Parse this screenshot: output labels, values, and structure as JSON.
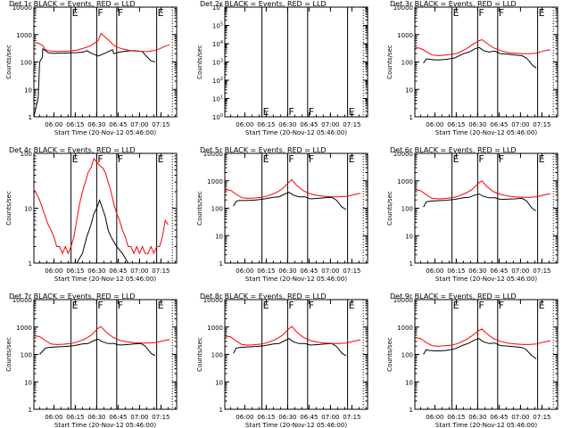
{
  "figure": {
    "ylabel": "Counts/sec",
    "xlabel": "Start Time (20-Nov-12 05:46:00)",
    "title_suffix": " BLACK = Events, RED = LLD",
    "xticks": [
      "06:00",
      "06:15",
      "06:30",
      "06:45",
      "07:00",
      "07:15"
    ],
    "colors": {
      "events": "#000000",
      "lld": "#ff0000"
    }
  },
  "chart_data": [
    {
      "type": "line",
      "det": "Det 1r",
      "yscale": "log",
      "ylim": [
        1,
        10000
      ],
      "yticks": [
        "1",
        "10",
        "100",
        "1000",
        "10000"
      ],
      "xlim": [
        "05:46",
        "07:26"
      ],
      "flags": [
        "E",
        "F",
        "F",
        "E"
      ],
      "series": [
        {
          "name": "BLACK = Events",
          "x": [
            0,
            3,
            4,
            6,
            6.2,
            8,
            10,
            12,
            14,
            17,
            20,
            25,
            30,
            35,
            37,
            40,
            45,
            50,
            55,
            56,
            60,
            65,
            70,
            76,
            78,
            80,
            82,
            85
          ],
          "y": [
            0,
            5,
            100,
            150,
            300,
            260,
            220,
            210,
            205,
            210,
            210,
            215,
            220,
            230,
            260,
            210,
            165,
            210,
            280,
            200,
            230,
            250,
            260,
            240,
            180,
            140,
            110,
            100
          ]
        },
        {
          "name": "RED = LLD",
          "x": [
            0,
            3,
            6,
            8,
            10,
            12,
            14,
            17,
            20,
            25,
            30,
            35,
            38,
            40,
            45,
            47,
            52,
            55,
            58,
            62,
            66,
            70,
            76,
            80,
            84,
            88,
            92,
            95
          ],
          "y": [
            500,
            490,
            400,
            280,
            260,
            250,
            245,
            240,
            245,
            250,
            270,
            320,
            360,
            400,
            600,
            1100,
            650,
            450,
            350,
            300,
            270,
            250,
            240,
            240,
            260,
            300,
            380,
            420
          ]
        }
      ]
    },
    {
      "type": "line",
      "det": "Det 2r",
      "yscale": "log",
      "ylim": [
        1,
        1000000
      ],
      "yticks": [
        "10^0",
        "10^1",
        "10^2",
        "10^3",
        "10^4",
        "10^5",
        "10^6"
      ],
      "xlim": [
        "05:46",
        "07:26"
      ],
      "flags": [
        "E",
        "F",
        "F",
        "E"
      ],
      "series": []
    },
    {
      "type": "line",
      "det": "Det 3r",
      "yscale": "log",
      "ylim": [
        1,
        10000
      ],
      "yticks": [
        "1",
        "10",
        "100",
        "1000",
        "10000"
      ],
      "xlim": [
        "05:46",
        "07:26"
      ],
      "flags": [
        "E",
        "F",
        "F",
        "E"
      ],
      "series": [
        {
          "name": "BLACK = Events",
          "x": [
            6,
            8,
            10,
            14,
            18,
            22,
            28,
            34,
            38,
            42,
            45,
            48,
            52,
            56,
            60,
            66,
            70,
            75,
            78,
            80,
            82,
            85
          ],
          "y": [
            90,
            130,
            125,
            120,
            120,
            125,
            140,
            200,
            230,
            300,
            340,
            260,
            230,
            250,
            200,
            190,
            180,
            170,
            140,
            110,
            80,
            60
          ]
        },
        {
          "name": "RED = LLD",
          "x": [
            0,
            4,
            8,
            12,
            16,
            20,
            26,
            30,
            36,
            40,
            45,
            47,
            50,
            55,
            60,
            65,
            70,
            76,
            80,
            85,
            90,
            95
          ],
          "y": [
            350,
            310,
            240,
            180,
            170,
            175,
            190,
            210,
            300,
            420,
            600,
            650,
            500,
            330,
            260,
            220,
            210,
            200,
            200,
            210,
            250,
            280
          ]
        }
      ]
    },
    {
      "type": "line",
      "det": "Det 4r",
      "yscale": "log",
      "ylim": [
        1,
        100
      ],
      "yticks": [
        "1",
        "10",
        "100"
      ],
      "xlim": [
        "05:46",
        "07:26"
      ],
      "flags": [
        "E",
        "F",
        "F",
        "E"
      ],
      "series": [
        {
          "name": "BLACK = Events",
          "x": [
            14,
            24,
            30,
            34,
            37,
            40,
            42,
            44,
            46,
            48,
            50,
            52,
            54,
            58,
            62,
            66,
            72
          ],
          "y": [
            1,
            1,
            1,
            1.5,
            3,
            5,
            8,
            10,
            14,
            10,
            7,
            4,
            3,
            2,
            1.5,
            1,
            1
          ]
        },
        {
          "name": "RED = LLD",
          "x": [
            0,
            2,
            4,
            6,
            8,
            10,
            12,
            14,
            16,
            18,
            20,
            22,
            24,
            26,
            28,
            30,
            32,
            34,
            36,
            38,
            40,
            42,
            44,
            46,
            48,
            50,
            52,
            54,
            56,
            58,
            60,
            62,
            64,
            66,
            68,
            70,
            72,
            74,
            76,
            78,
            80,
            82,
            84,
            86,
            88,
            90,
            92,
            94
          ],
          "y": [
            22,
            18,
            14,
            10,
            7,
            5,
            4,
            3,
            2,
            2,
            1.5,
            2,
            1.5,
            2,
            3,
            6,
            12,
            20,
            30,
            45,
            55,
            80,
            70,
            60,
            55,
            45,
            30,
            20,
            12,
            8,
            6,
            4,
            3,
            2,
            2,
            1.5,
            2,
            1.5,
            2,
            1.5,
            1.5,
            2,
            1.5,
            2,
            2,
            3,
            6,
            5
          ]
        }
      ]
    },
    {
      "type": "line",
      "det": "Det 5r",
      "yscale": "log",
      "ylim": [
        1,
        10000
      ],
      "yticks": [
        "1",
        "10",
        "100",
        "1000",
        "10000"
      ],
      "xlim": [
        "05:46",
        "07:26"
      ],
      "flags": [
        "E",
        "F",
        "F",
        "E"
      ],
      "series": [
        {
          "name": "BLACK = Events",
          "x": [
            6,
            8,
            10,
            14,
            18,
            22,
            28,
            34,
            38,
            42,
            45,
            48,
            52,
            56,
            60,
            66,
            70,
            75,
            78,
            80,
            82,
            85
          ],
          "y": [
            120,
            180,
            190,
            190,
            195,
            200,
            220,
            250,
            260,
            330,
            380,
            300,
            260,
            260,
            220,
            230,
            240,
            250,
            200,
            150,
            110,
            90
          ]
        },
        {
          "name": "RED = LLD",
          "x": [
            0,
            4,
            8,
            12,
            16,
            20,
            26,
            30,
            36,
            40,
            45,
            47,
            50,
            55,
            60,
            65,
            70,
            76,
            80,
            85,
            90,
            95
          ],
          "y": [
            480,
            450,
            320,
            240,
            230,
            235,
            250,
            280,
            370,
            500,
            900,
            1100,
            700,
            430,
            330,
            290,
            270,
            260,
            260,
            270,
            310,
            350
          ]
        }
      ]
    },
    {
      "type": "line",
      "det": "Det 6r",
      "yscale": "log",
      "ylim": [
        1,
        10000
      ],
      "yticks": [
        "1",
        "10",
        "100",
        "1000",
        "10000"
      ],
      "xlim": [
        "05:46",
        "07:26"
      ],
      "flags": [
        "E",
        "F",
        "F",
        "E"
      ],
      "series": [
        {
          "name": "BLACK = Events",
          "x": [
            6,
            8,
            10,
            14,
            18,
            22,
            28,
            34,
            38,
            42,
            45,
            48,
            52,
            56,
            60,
            66,
            70,
            75,
            78,
            80,
            82,
            85
          ],
          "y": [
            110,
            170,
            180,
            185,
            190,
            195,
            210,
            240,
            250,
            300,
            330,
            270,
            240,
            240,
            210,
            215,
            220,
            230,
            190,
            140,
            100,
            80
          ]
        },
        {
          "name": "RED = LLD",
          "x": [
            0,
            4,
            8,
            12,
            16,
            20,
            26,
            30,
            36,
            40,
            45,
            47,
            50,
            55,
            60,
            65,
            70,
            76,
            80,
            85,
            90,
            95
          ],
          "y": [
            470,
            440,
            310,
            230,
            220,
            225,
            240,
            270,
            360,
            480,
            850,
            1000,
            650,
            400,
            320,
            280,
            260,
            250,
            250,
            260,
            300,
            340
          ]
        }
      ]
    },
    {
      "type": "line",
      "det": "Det 7r",
      "yscale": "log",
      "ylim": [
        1,
        10000
      ],
      "yticks": [
        "1",
        "10",
        "100",
        "1000",
        "10000"
      ],
      "xlim": [
        "05:46",
        "07:26"
      ],
      "flags": [
        "E",
        "F",
        "F",
        "E"
      ],
      "series": [
        {
          "name": "BLACK = Events",
          "x": [
            4,
            6,
            8,
            10,
            14,
            18,
            22,
            28,
            34,
            38,
            42,
            45,
            48,
            52,
            56,
            60,
            66,
            70,
            75,
            78,
            80,
            82,
            85
          ],
          "y": [
            100,
            130,
            170,
            180,
            185,
            190,
            195,
            210,
            240,
            250,
            320,
            360,
            290,
            250,
            250,
            220,
            230,
            240,
            250,
            200,
            150,
            110,
            90
          ]
        },
        {
          "name": "RED = LLD",
          "x": [
            0,
            4,
            8,
            12,
            16,
            20,
            26,
            30,
            36,
            40,
            45,
            47,
            50,
            55,
            60,
            65,
            70,
            76,
            80,
            85,
            90,
            95
          ],
          "y": [
            480,
            450,
            320,
            240,
            230,
            235,
            250,
            280,
            370,
            500,
            900,
            1050,
            700,
            430,
            330,
            290,
            270,
            260,
            260,
            270,
            310,
            350
          ]
        }
      ]
    },
    {
      "type": "line",
      "det": "Det 8r",
      "yscale": "log",
      "ylim": [
        1,
        10000
      ],
      "yticks": [
        "1",
        "10",
        "100",
        "1000",
        "10000"
      ],
      "xlim": [
        "05:46",
        "07:26"
      ],
      "flags": [
        "E",
        "F",
        "F",
        "E"
      ],
      "series": [
        {
          "name": "BLACK = Events",
          "x": [
            6,
            8,
            10,
            14,
            18,
            22,
            28,
            34,
            38,
            42,
            45,
            48,
            52,
            56,
            60,
            66,
            70,
            75,
            78,
            80,
            82,
            85
          ],
          "y": [
            110,
            170,
            180,
            185,
            190,
            195,
            210,
            240,
            250,
            320,
            380,
            290,
            250,
            250,
            220,
            230,
            240,
            250,
            200,
            150,
            110,
            90
          ]
        },
        {
          "name": "RED = LLD",
          "x": [
            0,
            4,
            8,
            12,
            16,
            20,
            26,
            30,
            36,
            40,
            45,
            47,
            50,
            55,
            60,
            65,
            70,
            76,
            80,
            85,
            90,
            95
          ],
          "y": [
            470,
            440,
            310,
            230,
            220,
            225,
            240,
            270,
            360,
            490,
            880,
            1050,
            680,
            420,
            320,
            280,
            260,
            250,
            250,
            260,
            300,
            340
          ]
        }
      ]
    },
    {
      "type": "line",
      "det": "Det 9r",
      "yscale": "log",
      "ylim": [
        1,
        10000
      ],
      "yticks": [
        "1",
        "10",
        "100",
        "1000",
        "10000"
      ],
      "xlim": [
        "05:46",
        "07:26"
      ],
      "flags": [
        "E",
        "F",
        "F",
        "E"
      ],
      "series": [
        {
          "name": "BLACK = Events",
          "x": [
            6,
            8,
            10,
            14,
            18,
            22,
            28,
            34,
            38,
            42,
            45,
            48,
            52,
            56,
            60,
            66,
            70,
            75,
            78,
            80,
            82,
            85
          ],
          "y": [
            100,
            150,
            140,
            135,
            135,
            140,
            160,
            220,
            260,
            340,
            380,
            290,
            250,
            260,
            210,
            200,
            190,
            180,
            150,
            115,
            90,
            70
          ]
        },
        {
          "name": "RED = LLD",
          "x": [
            0,
            4,
            8,
            12,
            16,
            20,
            26,
            30,
            36,
            40,
            45,
            47,
            50,
            55,
            60,
            65,
            70,
            76,
            80,
            85,
            90,
            95
          ],
          "y": [
            420,
            380,
            270,
            210,
            200,
            205,
            220,
            250,
            350,
            480,
            750,
            850,
            600,
            380,
            300,
            260,
            240,
            230,
            230,
            240,
            280,
            320
          ]
        }
      ]
    }
  ]
}
